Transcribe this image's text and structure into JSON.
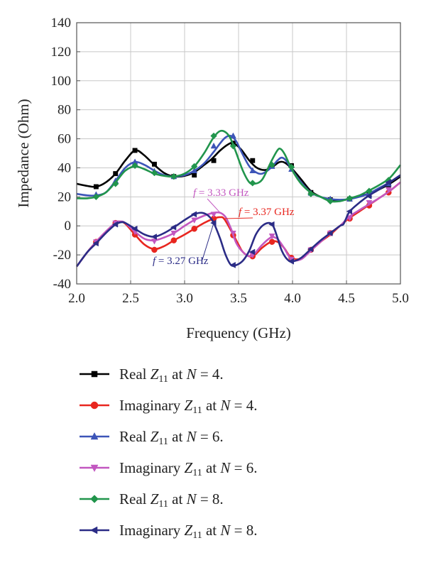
{
  "chart_data": {
    "type": "line",
    "xlabel": "Frequency (GHz)",
    "ylabel": "Impedance (Ohm)",
    "xlim": [
      2.0,
      5.0
    ],
    "ylim": [
      -40,
      140
    ],
    "xticks": [
      "2.0",
      "2.5",
      "3.0",
      "3.5",
      "4.0",
      "4.5",
      "5.0"
    ],
    "yticks": [
      "-40",
      "-20",
      "0",
      "20",
      "40",
      "60",
      "80",
      "100",
      "120",
      "140"
    ],
    "grid": true,
    "legend_position": "below",
    "series": [
      {
        "name": "Real Z11 at N = 4.",
        "label_parts": [
          "Real",
          "Z",
          "11",
          "at",
          "N",
          "= 4."
        ],
        "color": "#000000",
        "marker": "square",
        "x": [
          2.0,
          2.1,
          2.18,
          2.27,
          2.36,
          2.45,
          2.54,
          2.62,
          2.72,
          2.81,
          2.9,
          3.0,
          3.09,
          3.18,
          3.25,
          3.33,
          3.4,
          3.45,
          3.52,
          3.6,
          3.67,
          3.75,
          3.82,
          3.88,
          3.93,
          4.0,
          4.08,
          4.17,
          4.26,
          4.35,
          4.44,
          4.52,
          4.6,
          4.7,
          4.8,
          4.9,
          5.0
        ],
        "y": [
          29,
          27.5,
          27,
          30,
          36,
          45,
          52,
          49,
          42,
          36.5,
          34,
          34.5,
          37,
          42,
          46,
          52,
          56,
          57,
          53,
          45,
          40,
          38.5,
          41,
          44,
          43.5,
          39,
          32,
          24,
          20,
          18,
          17.5,
          18.5,
          20,
          22,
          25,
          29,
          34
        ],
        "marker_x": [
          2.18,
          2.36,
          2.54,
          2.72,
          2.9,
          3.09,
          3.27,
          3.45,
          3.63,
          3.81,
          3.99,
          4.17,
          4.35,
          4.53,
          4.71,
          4.89
        ],
        "marker_y": [
          27,
          36,
          52,
          42.5,
          34,
          35,
          45,
          57,
          45,
          41.5,
          41.5,
          23,
          18,
          18.5,
          22,
          28
        ]
      },
      {
        "name": "Imaginary Z11 at N = 4.",
        "label_parts": [
          "Imaginary",
          "Z",
          "11",
          "at",
          "N",
          "= 4."
        ],
        "color": "#e8261f",
        "marker": "circle",
        "x": [
          2.0,
          2.1,
          2.18,
          2.27,
          2.36,
          2.4,
          2.45,
          2.54,
          2.63,
          2.72,
          2.81,
          2.9,
          3.0,
          3.09,
          3.18,
          3.27,
          3.33,
          3.37,
          3.45,
          3.5,
          3.54,
          3.6,
          3.65,
          3.72,
          3.8,
          3.86,
          3.92,
          3.99,
          4.08,
          4.17,
          4.26,
          4.35,
          4.44,
          4.52,
          4.6,
          4.7,
          4.8,
          4.9,
          5.0
        ],
        "y": [
          -28,
          -18,
          -11,
          -4,
          2,
          3,
          1.5,
          -6,
          -13,
          -16,
          -14,
          -10,
          -6,
          -2,
          2,
          5,
          6,
          4.5,
          -6,
          -13,
          -18,
          -21,
          -20,
          -15,
          -11,
          -11,
          -15,
          -22,
          -22.5,
          -17,
          -11,
          -6,
          0,
          5,
          9,
          14,
          19,
          24,
          30
        ],
        "marker_x": [
          2.18,
          2.36,
          2.54,
          2.72,
          2.9,
          3.09,
          3.27,
          3.45,
          3.63,
          3.81,
          3.99,
          4.17,
          4.35,
          4.53,
          4.71,
          4.89
        ],
        "marker_y": [
          -11,
          2,
          -6,
          -16.5,
          -10,
          -2,
          5,
          -6.5,
          -21,
          -11,
          -22,
          -16.5,
          -5,
          5,
          14,
          23
        ]
      },
      {
        "name": "Real Z11 at N = 6.",
        "label_parts": [
          "Real",
          "Z",
          "11",
          "at",
          "N",
          "= 6."
        ],
        "color": "#3d55b8",
        "marker": "triangle-up",
        "x": [
          2.0,
          2.1,
          2.18,
          2.27,
          2.36,
          2.45,
          2.54,
          2.63,
          2.72,
          2.81,
          2.9,
          3.0,
          3.09,
          3.18,
          3.27,
          3.33,
          3.38,
          3.43,
          3.48,
          3.54,
          3.6,
          3.66,
          3.72,
          3.8,
          3.86,
          3.9,
          3.94,
          4.0,
          4.08,
          4.17,
          4.26,
          4.35,
          4.44,
          4.53,
          4.62,
          4.7,
          4.8,
          4.9,
          5.0
        ],
        "y": [
          22,
          21,
          21,
          23,
          31,
          40,
          44,
          42,
          38,
          35,
          34,
          35,
          38,
          43,
          51,
          57,
          61,
          62,
          58,
          49,
          41,
          37,
          36,
          40,
          45,
          47,
          45,
          38,
          30,
          23,
          20,
          18.5,
          18,
          18.5,
          20,
          22,
          26,
          30,
          35
        ],
        "marker_x": [
          2.18,
          2.36,
          2.54,
          2.72,
          2.9,
          3.09,
          3.27,
          3.45,
          3.63,
          3.81,
          3.99,
          4.17,
          4.35,
          4.53,
          4.71,
          4.89
        ],
        "marker_y": [
          21.5,
          31,
          44,
          37.5,
          34,
          38,
          55,
          62,
          38,
          41,
          39,
          22.5,
          18.5,
          18.5,
          21.5,
          29
        ]
      },
      {
        "name": "Imaginary Z11 at N = 6.",
        "label_parts": [
          "Imaginary",
          "Z",
          "11",
          "at",
          "N",
          "= 6."
        ],
        "color": "#c257c0",
        "marker": "triangle-down",
        "x": [
          2.0,
          2.1,
          2.18,
          2.27,
          2.36,
          2.41,
          2.45,
          2.54,
          2.63,
          2.72,
          2.81,
          2.9,
          3.0,
          3.09,
          3.18,
          3.27,
          3.33,
          3.38,
          3.43,
          3.48,
          3.54,
          3.6,
          3.65,
          3.72,
          3.8,
          3.86,
          3.92,
          3.99,
          4.08,
          4.17,
          4.26,
          4.35,
          4.44,
          4.52,
          4.6,
          4.7,
          4.8,
          4.9,
          5.0
        ],
        "y": [
          -28,
          -18,
          -11,
          -4,
          2,
          3,
          2,
          -4,
          -9,
          -10,
          -8,
          -5,
          0,
          4,
          7,
          9,
          9,
          6,
          -2,
          -12,
          -18,
          -21,
          -19,
          -13,
          -8,
          -9,
          -15,
          -23,
          -23,
          -17,
          -11,
          -5,
          0,
          6,
          10,
          14.5,
          19,
          24,
          30
        ],
        "marker_x": [
          2.18,
          2.36,
          2.54,
          2.72,
          2.9,
          3.09,
          3.27,
          3.45,
          3.63,
          3.81,
          3.99,
          4.17,
          4.35,
          4.53,
          4.71,
          4.89
        ],
        "marker_y": [
          -11,
          2,
          -4,
          -10.5,
          -5,
          4,
          8,
          -5,
          -20,
          -7,
          -23,
          -16.5,
          -5,
          5.5,
          16,
          25
        ]
      },
      {
        "name": "Real Z11 at N = 8.",
        "label_parts": [
          "Real",
          "Z",
          "11",
          "at",
          "N",
          "= 8."
        ],
        "color": "#21954c",
        "marker": "diamond",
        "x": [
          2.0,
          2.1,
          2.18,
          2.27,
          2.36,
          2.45,
          2.54,
          2.63,
          2.72,
          2.81,
          2.9,
          3.0,
          3.09,
          3.18,
          3.26,
          3.32,
          3.37,
          3.42,
          3.47,
          3.54,
          3.6,
          3.65,
          3.72,
          3.8,
          3.86,
          3.89,
          3.93,
          4.0,
          4.08,
          4.17,
          4.26,
          4.35,
          4.44,
          4.53,
          4.62,
          4.7,
          4.8,
          4.9,
          5.0
        ],
        "y": [
          19,
          19,
          20,
          23,
          30,
          38,
          41,
          39,
          36,
          34.5,
          34,
          36,
          41,
          50,
          60,
          65,
          65,
          61,
          52,
          38,
          30,
          29,
          32,
          44,
          52,
          53,
          49,
          38,
          29,
          23,
          20,
          17,
          17,
          19,
          21,
          24,
          28,
          33,
          42
        ],
        "marker_x": [
          2.18,
          2.36,
          2.54,
          2.72,
          2.9,
          3.09,
          3.27,
          3.45,
          3.63,
          3.81,
          3.99,
          4.17,
          4.35,
          4.53,
          4.71,
          4.89
        ],
        "marker_y": [
          20,
          29,
          41.5,
          36.5,
          34,
          41,
          62,
          55,
          29.5,
          42,
          40.5,
          22,
          17,
          19,
          24,
          31.5
        ]
      },
      {
        "name": "Imaginary Z11 at N = 8.",
        "label_parts": [
          "Imaginary",
          "Z",
          "11",
          "at",
          "N",
          "= 8."
        ],
        "color": "#2b2c86",
        "marker": "triangle-left",
        "x": [
          2.0,
          2.1,
          2.18,
          2.27,
          2.36,
          2.41,
          2.45,
          2.54,
          2.63,
          2.72,
          2.81,
          2.9,
          3.0,
          3.09,
          3.16,
          3.22,
          3.27,
          3.33,
          3.38,
          3.43,
          3.48,
          3.54,
          3.6,
          3.66,
          3.72,
          3.78,
          3.82,
          3.86,
          3.9,
          3.95,
          4.0,
          4.08,
          4.17,
          4.26,
          4.35,
          4.44,
          4.47,
          4.49,
          4.53,
          4.62,
          4.7,
          4.8,
          4.9,
          5.0
        ],
        "y": [
          -28,
          -18,
          -12,
          -5,
          1,
          2.5,
          2,
          -2,
          -6,
          -7.5,
          -5,
          -1,
          4,
          8,
          9,
          7,
          2,
          -9,
          -20,
          -27,
          -27,
          -24,
          -17,
          -6,
          0,
          2,
          0,
          -8,
          -17,
          -23,
          -24.5,
          -22,
          -16,
          -10,
          -5,
          0,
          1,
          4,
          10,
          16,
          20.5,
          25,
          30,
          35
        ],
        "marker_x": [
          2.18,
          2.36,
          2.54,
          2.72,
          2.9,
          3.09,
          3.27,
          3.45,
          3.63,
          3.81,
          3.99,
          4.17,
          4.35,
          4.53,
          4.71,
          4.89
        ],
        "marker_y": [
          -12,
          1,
          -2,
          -7.5,
          -1,
          8,
          2,
          -27,
          -18,
          1,
          -24.5,
          -16,
          -5,
          10,
          20.5,
          30
        ]
      }
    ],
    "annotations": [
      {
        "label": "f",
        "value": "= 3.33 GHz",
        "color": "#c257c0",
        "point": [
          3.33,
          9
        ]
      },
      {
        "label": "f",
        "value": "= 3.37 GHz",
        "color": "#e8261f",
        "point": [
          3.37,
          5
        ]
      },
      {
        "label": "f",
        "value": "= 3.27 GHz",
        "color": "#2b2c86",
        "point": [
          3.27,
          2
        ]
      }
    ]
  }
}
